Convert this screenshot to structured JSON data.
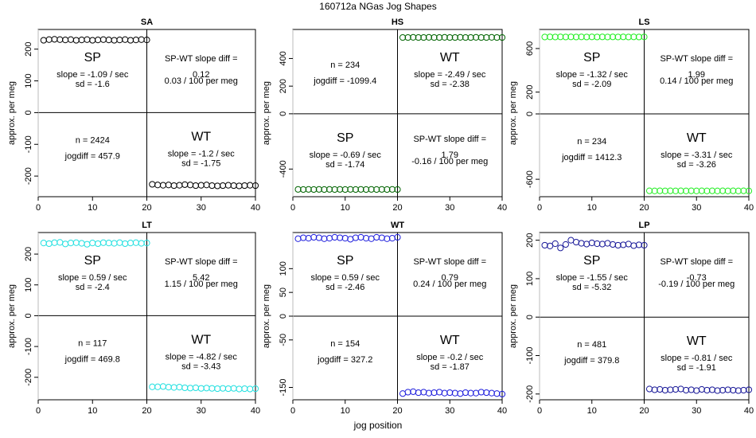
{
  "figure": {
    "title": "160712a   NGas Jog Shapes",
    "xlabel": "jog position",
    "ylabel": "approx. per meg",
    "labels": {
      "left_phase": "SP",
      "right_phase": "WT",
      "diff_title": "SP-WT slope diff =",
      "slope_prefix": "slope = ",
      "slope_suffix": " / sec",
      "sd_prefix": "sd = ",
      "n_prefix": "n = ",
      "jogdiff_prefix": "jogdiff = ",
      "diff_per_meg_suffix": " / 100 per meg"
    }
  },
  "chart_data": [
    {
      "type": "scatter",
      "panel": "SA",
      "color": "#000000",
      "xlim": [
        0,
        40
      ],
      "ylim": [
        -265,
        262
      ],
      "xticks": [
        0,
        10,
        20,
        30,
        40
      ],
      "yticks": [
        -200,
        -100,
        0,
        100,
        200
      ],
      "sp": {
        "x": [
          1,
          2,
          3,
          4,
          5,
          6,
          7,
          8,
          9,
          10,
          11,
          12,
          13,
          14,
          15,
          16,
          17,
          18,
          19,
          20
        ],
        "y": [
          228,
          230,
          231,
          230,
          229,
          230,
          228,
          229,
          230,
          228,
          229,
          230,
          229,
          228,
          229,
          230,
          228,
          229,
          230,
          229
        ]
      },
      "wt": {
        "x": [
          21,
          22,
          23,
          24,
          25,
          26,
          27,
          28,
          29,
          30,
          31,
          32,
          33,
          34,
          35,
          36,
          37,
          38,
          39,
          40
        ],
        "y": [
          -226,
          -228,
          -229,
          -228,
          -230,
          -229,
          -227,
          -228,
          -230,
          -229,
          -228,
          -230,
          -231,
          -230,
          -229,
          -230,
          -231,
          -230,
          -229,
          -230
        ]
      },
      "stats": {
        "sp_slope": "-1.09",
        "sp_sd": "-1.6",
        "wt_slope": "-1.2",
        "wt_sd": "-1.75",
        "slope_diff": "0.12",
        "slope_diff_per_meg": "0.03",
        "n": "2424",
        "jogdiff": "457.9",
        "diff_pos": "top",
        "n_pos": "bottom"
      }
    },
    {
      "type": "scatter",
      "panel": "HS",
      "color": "#006400",
      "xlim": [
        0,
        40
      ],
      "ylim": [
        -600,
        610
      ],
      "xticks": [
        0,
        10,
        20,
        30,
        40
      ],
      "yticks": [
        -400,
        0,
        200,
        400
      ],
      "sp": {
        "x": [
          1,
          2,
          3,
          4,
          5,
          6,
          7,
          8,
          9,
          10,
          11,
          12,
          13,
          14,
          15,
          16,
          17,
          18,
          19,
          20
        ],
        "y": [
          -547,
          -548,
          -547,
          -548,
          -547,
          -548,
          -547,
          -548,
          -547,
          -548,
          -547,
          -548,
          -547,
          -548,
          -547,
          -548,
          -547,
          -548,
          -547,
          -548
        ]
      },
      "wt": {
        "x": [
          21,
          22,
          23,
          24,
          25,
          26,
          27,
          28,
          29,
          30,
          31,
          32,
          33,
          34,
          35,
          36,
          37,
          38,
          39,
          40
        ],
        "y": [
          552,
          552,
          553,
          552,
          552,
          553,
          552,
          552,
          553,
          552,
          552,
          553,
          552,
          552,
          553,
          552,
          552,
          553,
          552,
          552
        ]
      },
      "stats": {
        "sp_slope": "-0.69",
        "sp_sd": "-1.74",
        "wt_slope": "-2.49",
        "wt_sd": "-2.38",
        "slope_diff": "1.79",
        "slope_diff_per_meg": "-0.16",
        "n": "234",
        "jogdiff": "-1099.4",
        "diff_pos": "bottom",
        "n_pos": "top"
      }
    },
    {
      "type": "scatter",
      "panel": "LS",
      "color": "#22ee22",
      "xlim": [
        0,
        40
      ],
      "ylim": [
        -760,
        775
      ],
      "xticks": [
        0,
        10,
        20,
        30,
        40
      ],
      "yticks": [
        -600,
        0,
        200,
        600
      ],
      "sp": {
        "x": [
          1,
          2,
          3,
          4,
          5,
          6,
          7,
          8,
          9,
          10,
          11,
          12,
          13,
          14,
          15,
          16,
          17,
          18,
          19,
          20
        ],
        "y": [
          706,
          707,
          706,
          707,
          706,
          707,
          706,
          707,
          706,
          707,
          706,
          707,
          706,
          707,
          706,
          707,
          706,
          707,
          706,
          707
        ]
      },
      "wt": {
        "x": [
          21,
          22,
          23,
          24,
          25,
          26,
          27,
          28,
          29,
          30,
          31,
          32,
          33,
          34,
          35,
          36,
          37,
          38,
          39,
          40
        ],
        "y": [
          -706,
          -707,
          -706,
          -707,
          -706,
          -707,
          -706,
          -707,
          -706,
          -707,
          -706,
          -707,
          -706,
          -707,
          -706,
          -707,
          -706,
          -707,
          -706,
          -707
        ]
      },
      "stats": {
        "sp_slope": "-1.32",
        "sp_sd": "-2.09",
        "wt_slope": "-3.31",
        "wt_sd": "-3.26",
        "slope_diff": "1.99",
        "slope_diff_per_meg": "0.14",
        "n": "234",
        "jogdiff": "1412.3",
        "diff_pos": "top",
        "n_pos": "bottom"
      }
    },
    {
      "type": "scatter",
      "panel": "LT",
      "color": "#22e0e0",
      "xlim": [
        0,
        40
      ],
      "ylim": [
        -273,
        270
      ],
      "xticks": [
        0,
        10,
        20,
        30,
        40
      ],
      "yticks": [
        -200,
        -100,
        0,
        100,
        200
      ],
      "sp": {
        "x": [
          1,
          2,
          3,
          4,
          5,
          6,
          7,
          8,
          9,
          10,
          11,
          12,
          13,
          14,
          15,
          16,
          17,
          18,
          19,
          20
        ],
        "y": [
          236,
          234,
          237,
          238,
          233,
          236,
          237,
          235,
          232,
          236,
          234,
          237,
          236,
          235,
          237,
          234,
          236,
          237,
          235,
          236
        ]
      },
      "wt": {
        "x": [
          21,
          22,
          23,
          24,
          25,
          26,
          27,
          28,
          29,
          30,
          31,
          32,
          33,
          34,
          35,
          36,
          37,
          38,
          39,
          40
        ],
        "y": [
          -231,
          -231,
          -230,
          -232,
          -233,
          -232,
          -234,
          -235,
          -234,
          -236,
          -235,
          -236,
          -237,
          -236,
          -237,
          -236,
          -238,
          -237,
          -238,
          -237
        ]
      },
      "stats": {
        "sp_slope": "0.59",
        "sp_sd": "-2.4",
        "wt_slope": "-4.82",
        "wt_sd": "-3.43",
        "slope_diff": "5.42",
        "slope_diff_per_meg": "1.15",
        "n": "117",
        "jogdiff": "469.8",
        "diff_pos": "top",
        "n_pos": "bottom"
      }
    },
    {
      "type": "scatter",
      "panel": "WT",
      "color": "#2020dd",
      "xlim": [
        0,
        40
      ],
      "ylim": [
        -176,
        176
      ],
      "xticks": [
        0,
        10,
        20,
        30,
        40
      ],
      "yticks": [
        -150,
        -50,
        0,
        50,
        100
      ],
      "sp": {
        "x": [
          1,
          2,
          3,
          4,
          5,
          6,
          7,
          8,
          9,
          10,
          11,
          12,
          13,
          14,
          15,
          16,
          17,
          18,
          19,
          20
        ],
        "y": [
          163,
          165,
          164,
          166,
          165,
          163,
          164,
          166,
          165,
          164,
          162,
          165,
          166,
          164,
          163,
          166,
          165,
          163,
          164,
          166
        ]
      },
      "wt": {
        "x": [
          21,
          22,
          23,
          24,
          25,
          26,
          27,
          28,
          29,
          30,
          31,
          32,
          33,
          34,
          35,
          36,
          37,
          38,
          39,
          40
        ],
        "y": [
          -163,
          -160,
          -159,
          -161,
          -160,
          -162,
          -161,
          -160,
          -162,
          -161,
          -162,
          -163,
          -161,
          -162,
          -162,
          -160,
          -161,
          -162,
          -163,
          -164
        ]
      },
      "stats": {
        "sp_slope": "0.59",
        "sp_sd": "-2.46",
        "wt_slope": "-0.2",
        "wt_sd": "-1.87",
        "slope_diff": "0.79",
        "slope_diff_per_meg": "0.24",
        "n": "154",
        "jogdiff": "327.2",
        "diff_pos": "top",
        "n_pos": "bottom"
      }
    },
    {
      "type": "scatter",
      "panel": "LP",
      "color": "#1a1a99",
      "xlim": [
        0,
        40
      ],
      "ylim": [
        -215,
        220
      ],
      "xticks": [
        0,
        10,
        20,
        30,
        40
      ],
      "yticks": [
        -200,
        -100,
        0,
        100,
        200
      ],
      "sp": {
        "x": [
          1,
          2,
          3,
          4,
          5,
          6,
          7,
          8,
          9,
          10,
          11,
          12,
          13,
          14,
          15,
          16,
          17,
          18,
          19,
          20
        ],
        "y": [
          187,
          185,
          191,
          180,
          189,
          200,
          195,
          192,
          190,
          193,
          191,
          190,
          192,
          189,
          187,
          188,
          190,
          186,
          188,
          187
        ]
      },
      "wt": {
        "x": [
          21,
          22,
          23,
          24,
          25,
          26,
          27,
          28,
          29,
          30,
          31,
          32,
          33,
          34,
          35,
          36,
          37,
          38,
          39,
          40
        ],
        "y": [
          -187,
          -189,
          -188,
          -190,
          -189,
          -188,
          -187,
          -190,
          -189,
          -191,
          -188,
          -190,
          -189,
          -191,
          -190,
          -189,
          -190,
          -191,
          -190,
          -189
        ]
      },
      "stats": {
        "sp_slope": "-1.55",
        "sp_sd": "-5.32",
        "wt_slope": "-0.81",
        "wt_sd": "-1.91",
        "slope_diff": "-0.73",
        "slope_diff_per_meg": "-0.19",
        "n": "481",
        "jogdiff": "379.8",
        "diff_pos": "top",
        "n_pos": "bottom"
      }
    }
  ]
}
